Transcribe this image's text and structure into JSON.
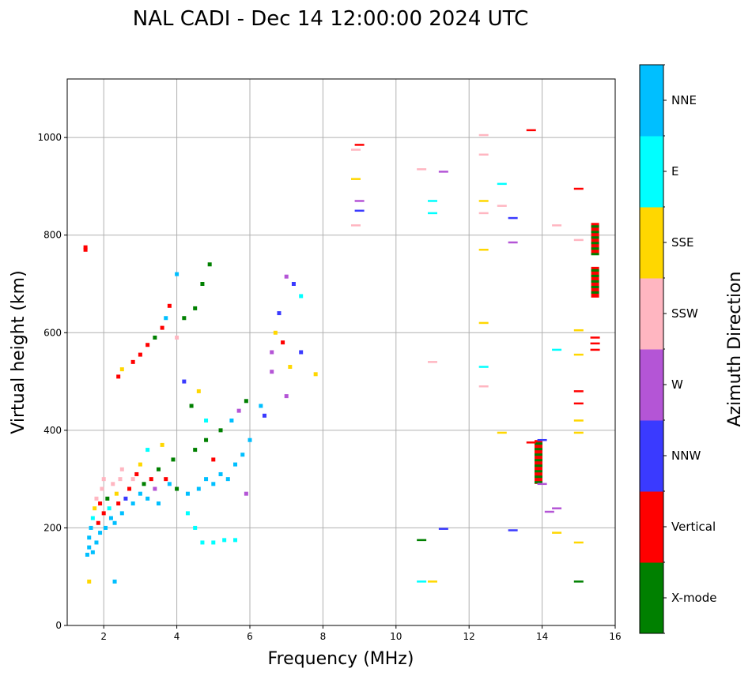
{
  "chart_data": {
    "type": "scatter",
    "title": "NAL CADI - Dec 14 12:00:00 2024 UTC",
    "xlabel": "Frequency (MHz)",
    "ylabel": "Virtual height (km)",
    "xlim": [
      1,
      16
    ],
    "ylim": [
      0,
      1120
    ],
    "grid": true,
    "x_ticks": [
      2,
      4,
      6,
      8,
      10,
      12,
      14,
      16
    ],
    "y_ticks": [
      0,
      200,
      400,
      600,
      800,
      1000
    ],
    "colorbar": {
      "label": "Azimuth Direction",
      "categories": [
        "X-mode",
        "Vertical",
        "NNW",
        "W",
        "SSW",
        "SSE",
        "E",
        "NNE"
      ],
      "colors": [
        "#008000",
        "#ff0000",
        "#3a3aff",
        "#b455d6",
        "#ffb6c1",
        "#ffd700",
        "#00ffff",
        "#00bfff"
      ]
    },
    "points": [
      {
        "f": 1.5,
        "h": 770,
        "c": "Vertical"
      },
      {
        "f": 1.5,
        "h": 775,
        "c": "Vertical"
      },
      {
        "f": 1.55,
        "h": 145,
        "c": "NNE"
      },
      {
        "f": 1.6,
        "h": 160,
        "c": "NNE"
      },
      {
        "f": 1.6,
        "h": 180,
        "c": "NNE"
      },
      {
        "f": 1.65,
        "h": 200,
        "c": "NNE"
      },
      {
        "f": 1.7,
        "h": 150,
        "c": "NNE"
      },
      {
        "f": 1.7,
        "h": 220,
        "c": "E"
      },
      {
        "f": 1.75,
        "h": 240,
        "c": "SSE"
      },
      {
        "f": 1.8,
        "h": 170,
        "c": "NNE"
      },
      {
        "f": 1.8,
        "h": 260,
        "c": "SSW"
      },
      {
        "f": 1.85,
        "h": 210,
        "c": "Vertical"
      },
      {
        "f": 1.9,
        "h": 250,
        "c": "Vertical"
      },
      {
        "f": 1.9,
        "h": 190,
        "c": "NNE"
      },
      {
        "f": 1.95,
        "h": 280,
        "c": "SSW"
      },
      {
        "f": 2.0,
        "h": 230,
        "c": "Vertical"
      },
      {
        "f": 2.0,
        "h": 300,
        "c": "SSW"
      },
      {
        "f": 2.05,
        "h": 200,
        "c": "NNE"
      },
      {
        "f": 2.1,
        "h": 260,
        "c": "X-mode"
      },
      {
        "f": 2.15,
        "h": 240,
        "c": "E"
      },
      {
        "f": 2.2,
        "h": 220,
        "c": "NNE"
      },
      {
        "f": 2.25,
        "h": 290,
        "c": "SSW"
      },
      {
        "f": 2.3,
        "h": 210,
        "c": "NNE"
      },
      {
        "f": 2.35,
        "h": 270,
        "c": "SSE"
      },
      {
        "f": 2.4,
        "h": 250,
        "c": "Vertical"
      },
      {
        "f": 2.45,
        "h": 300,
        "c": "SSW"
      },
      {
        "f": 1.6,
        "h": 90,
        "c": "SSE"
      },
      {
        "f": 2.3,
        "h": 90,
        "c": "NNE"
      },
      {
        "f": 2.5,
        "h": 230,
        "c": "NNE"
      },
      {
        "f": 2.5,
        "h": 320,
        "c": "SSW"
      },
      {
        "f": 2.6,
        "h": 260,
        "c": "NNW"
      },
      {
        "f": 2.7,
        "h": 280,
        "c": "Vertical"
      },
      {
        "f": 2.8,
        "h": 300,
        "c": "SSW"
      },
      {
        "f": 2.8,
        "h": 250,
        "c": "NNE"
      },
      {
        "f": 2.9,
        "h": 310,
        "c": "Vertical"
      },
      {
        "f": 3.0,
        "h": 270,
        "c": "NNE"
      },
      {
        "f": 3.0,
        "h": 330,
        "c": "SSE"
      },
      {
        "f": 3.1,
        "h": 290,
        "c": "X-mode"
      },
      {
        "f": 3.2,
        "h": 260,
        "c": "NNE"
      },
      {
        "f": 3.2,
        "h": 360,
        "c": "E"
      },
      {
        "f": 3.3,
        "h": 300,
        "c": "Vertical"
      },
      {
        "f": 3.4,
        "h": 280,
        "c": "W"
      },
      {
        "f": 3.5,
        "h": 320,
        "c": "X-mode"
      },
      {
        "f": 3.5,
        "h": 250,
        "c": "NNE"
      },
      {
        "f": 3.6,
        "h": 370,
        "c": "SSE"
      },
      {
        "f": 3.7,
        "h": 300,
        "c": "Vertical"
      },
      {
        "f": 3.8,
        "h": 290,
        "c": "NNE"
      },
      {
        "f": 3.9,
        "h": 340,
        "c": "X-mode"
      },
      {
        "f": 4.0,
        "h": 280,
        "c": "X-mode"
      },
      {
        "f": 4.0,
        "h": 720,
        "c": "NNE"
      },
      {
        "f": 2.4,
        "h": 510,
        "c": "Vertical"
      },
      {
        "f": 2.5,
        "h": 525,
        "c": "SSE"
      },
      {
        "f": 2.8,
        "h": 540,
        "c": "Vertical"
      },
      {
        "f": 3.0,
        "h": 555,
        "c": "Vertical"
      },
      {
        "f": 3.2,
        "h": 575,
        "c": "Vertical"
      },
      {
        "f": 3.4,
        "h": 590,
        "c": "X-mode"
      },
      {
        "f": 3.6,
        "h": 610,
        "c": "Vertical"
      },
      {
        "f": 3.7,
        "h": 630,
        "c": "NNE"
      },
      {
        "f": 3.8,
        "h": 655,
        "c": "Vertical"
      },
      {
        "f": 4.0,
        "h": 590,
        "c": "SSW"
      },
      {
        "f": 4.2,
        "h": 630,
        "c": "X-mode"
      },
      {
        "f": 4.5,
        "h": 650,
        "c": "X-mode"
      },
      {
        "f": 4.7,
        "h": 700,
        "c": "X-mode"
      },
      {
        "f": 4.9,
        "h": 740,
        "c": "X-mode"
      },
      {
        "f": 4.2,
        "h": 500,
        "c": "NNW"
      },
      {
        "f": 4.4,
        "h": 450,
        "c": "X-mode"
      },
      {
        "f": 4.6,
        "h": 480,
        "c": "SSE"
      },
      {
        "f": 4.8,
        "h": 420,
        "c": "E"
      },
      {
        "f": 4.3,
        "h": 270,
        "c": "NNE"
      },
      {
        "f": 4.6,
        "h": 280,
        "c": "NNE"
      },
      {
        "f": 4.8,
        "h": 300,
        "c": "NNE"
      },
      {
        "f": 5.0,
        "h": 290,
        "c": "NNE"
      },
      {
        "f": 5.2,
        "h": 310,
        "c": "NNE"
      },
      {
        "f": 5.4,
        "h": 300,
        "c": "NNE"
      },
      {
        "f": 5.6,
        "h": 330,
        "c": "NNE"
      },
      {
        "f": 5.8,
        "h": 350,
        "c": "NNE"
      },
      {
        "f": 4.5,
        "h": 360,
        "c": "X-mode"
      },
      {
        "f": 4.8,
        "h": 380,
        "c": "X-mode"
      },
      {
        "f": 5.0,
        "h": 340,
        "c": "Vertical"
      },
      {
        "f": 5.2,
        "h": 400,
        "c": "X-mode"
      },
      {
        "f": 5.5,
        "h": 420,
        "c": "NNE"
      },
      {
        "f": 5.7,
        "h": 440,
        "c": "W"
      },
      {
        "f": 5.9,
        "h": 460,
        "c": "X-mode"
      },
      {
        "f": 6.0,
        "h": 380,
        "c": "NNE"
      },
      {
        "f": 4.3,
        "h": 230,
        "c": "E"
      },
      {
        "f": 4.5,
        "h": 200,
        "c": "E"
      },
      {
        "f": 4.7,
        "h": 170,
        "c": "E"
      },
      {
        "f": 5.0,
        "h": 170,
        "c": "E"
      },
      {
        "f": 5.3,
        "h": 175,
        "c": "E"
      },
      {
        "f": 5.6,
        "h": 175,
        "c": "E"
      },
      {
        "f": 5.9,
        "h": 270,
        "c": "W"
      },
      {
        "f": 6.3,
        "h": 450,
        "c": "NNE"
      },
      {
        "f": 6.4,
        "h": 430,
        "c": "NNW"
      },
      {
        "f": 6.6,
        "h": 520,
        "c": "W"
      },
      {
        "f": 6.7,
        "h": 600,
        "c": "SSE"
      },
      {
        "f": 6.8,
        "h": 640,
        "c": "NNW"
      },
      {
        "f": 6.9,
        "h": 580,
        "c": "Vertical"
      },
      {
        "f": 7.0,
        "h": 470,
        "c": "W"
      },
      {
        "f": 7.1,
        "h": 530,
        "c": "SSE"
      },
      {
        "f": 7.2,
        "h": 700,
        "c": "NNW"
      },
      {
        "f": 7.4,
        "h": 675,
        "c": "E"
      },
      {
        "f": 7.4,
        "h": 560,
        "c": "NNW"
      },
      {
        "f": 7.8,
        "h": 515,
        "c": "SSE"
      },
      {
        "f": 7.0,
        "h": 715,
        "c": "W"
      },
      {
        "f": 6.6,
        "h": 560,
        "c": "W"
      },
      {
        "f": 8.9,
        "h": 975,
        "c": "SSW"
      },
      {
        "f": 9.0,
        "h": 985,
        "c": "Vertical"
      },
      {
        "f": 8.9,
        "h": 915,
        "c": "SSE"
      },
      {
        "f": 9.0,
        "h": 870,
        "c": "W"
      },
      {
        "f": 9.0,
        "h": 850,
        "c": "NNW"
      },
      {
        "f": 8.9,
        "h": 820,
        "c": "SSW"
      },
      {
        "f": 10.7,
        "h": 935,
        "c": "SSW"
      },
      {
        "f": 11.3,
        "h": 930,
        "c": "W"
      },
      {
        "f": 11.0,
        "h": 870,
        "c": "E"
      },
      {
        "f": 11.0,
        "h": 845,
        "c": "E"
      },
      {
        "f": 11.0,
        "h": 540,
        "c": "SSW"
      },
      {
        "f": 10.7,
        "h": 175,
        "c": "X-mode"
      },
      {
        "f": 10.7,
        "h": 90,
        "c": "E"
      },
      {
        "f": 11.0,
        "h": 90,
        "c": "SSE"
      },
      {
        "f": 11.3,
        "h": 198,
        "c": "NNW"
      },
      {
        "f": 12.4,
        "h": 1005,
        "c": "SSW"
      },
      {
        "f": 12.4,
        "h": 965,
        "c": "SSW"
      },
      {
        "f": 12.4,
        "h": 870,
        "c": "SSE"
      },
      {
        "f": 12.4,
        "h": 845,
        "c": "SSW"
      },
      {
        "f": 12.4,
        "h": 770,
        "c": "SSE"
      },
      {
        "f": 12.4,
        "h": 620,
        "c": "SSE"
      },
      {
        "f": 12.4,
        "h": 530,
        "c": "E"
      },
      {
        "f": 12.4,
        "h": 490,
        "c": "SSW"
      },
      {
        "f": 12.9,
        "h": 905,
        "c": "E"
      },
      {
        "f": 12.9,
        "h": 860,
        "c": "SSW"
      },
      {
        "f": 12.9,
        "h": 395,
        "c": "SSE"
      },
      {
        "f": 13.2,
        "h": 835,
        "c": "NNW"
      },
      {
        "f": 13.2,
        "h": 785,
        "c": "W"
      },
      {
        "f": 13.2,
        "h": 195,
        "c": "NNW"
      },
      {
        "f": 13.7,
        "h": 1015,
        "c": "Vertical"
      },
      {
        "f": 13.7,
        "h": 375,
        "c": "Vertical"
      },
      {
        "f": 14.0,
        "h": 290,
        "c": "W"
      },
      {
        "f": 14.0,
        "h": 380,
        "c": "NNW"
      },
      {
        "f": 14.2,
        "h": 233,
        "c": "W"
      },
      {
        "f": 14.4,
        "h": 820,
        "c": "SSW"
      },
      {
        "f": 14.4,
        "h": 565,
        "c": "E"
      },
      {
        "f": 14.4,
        "h": 240,
        "c": "W"
      },
      {
        "f": 14.4,
        "h": 190,
        "c": "SSE"
      },
      {
        "f": 15.0,
        "h": 895,
        "c": "Vertical"
      },
      {
        "f": 15.0,
        "h": 790,
        "c": "SSW"
      },
      {
        "f": 15.0,
        "h": 605,
        "c": "SSE"
      },
      {
        "f": 15.0,
        "h": 555,
        "c": "SSE"
      },
      {
        "f": 15.0,
        "h": 480,
        "c": "Vertical"
      },
      {
        "f": 15.0,
        "h": 455,
        "c": "Vertical"
      },
      {
        "f": 15.0,
        "h": 420,
        "c": "SSE"
      },
      {
        "f": 15.0,
        "h": 395,
        "c": "SSE"
      },
      {
        "f": 15.0,
        "h": 170,
        "c": "SSE"
      },
      {
        "f": 15.0,
        "h": 90,
        "c": "X-mode"
      },
      {
        "f": 15.45,
        "h": 590,
        "c": "Vertical"
      },
      {
        "f": 15.45,
        "h": 578,
        "c": "Vertical"
      },
      {
        "f": 15.45,
        "h": 565,
        "c": "Vertical"
      }
    ],
    "blocks": [
      {
        "f": 13.9,
        "h_min": 290,
        "h_max": 380,
        "c": "Vertical",
        "stripe": "X-mode"
      },
      {
        "f": 15.45,
        "h_min": 760,
        "h_max": 825,
        "c": "Vertical",
        "stripe": "X-mode"
      },
      {
        "f": 15.45,
        "h_min": 672,
        "h_max": 735,
        "c": "Vertical",
        "stripe": "X-mode"
      }
    ]
  }
}
